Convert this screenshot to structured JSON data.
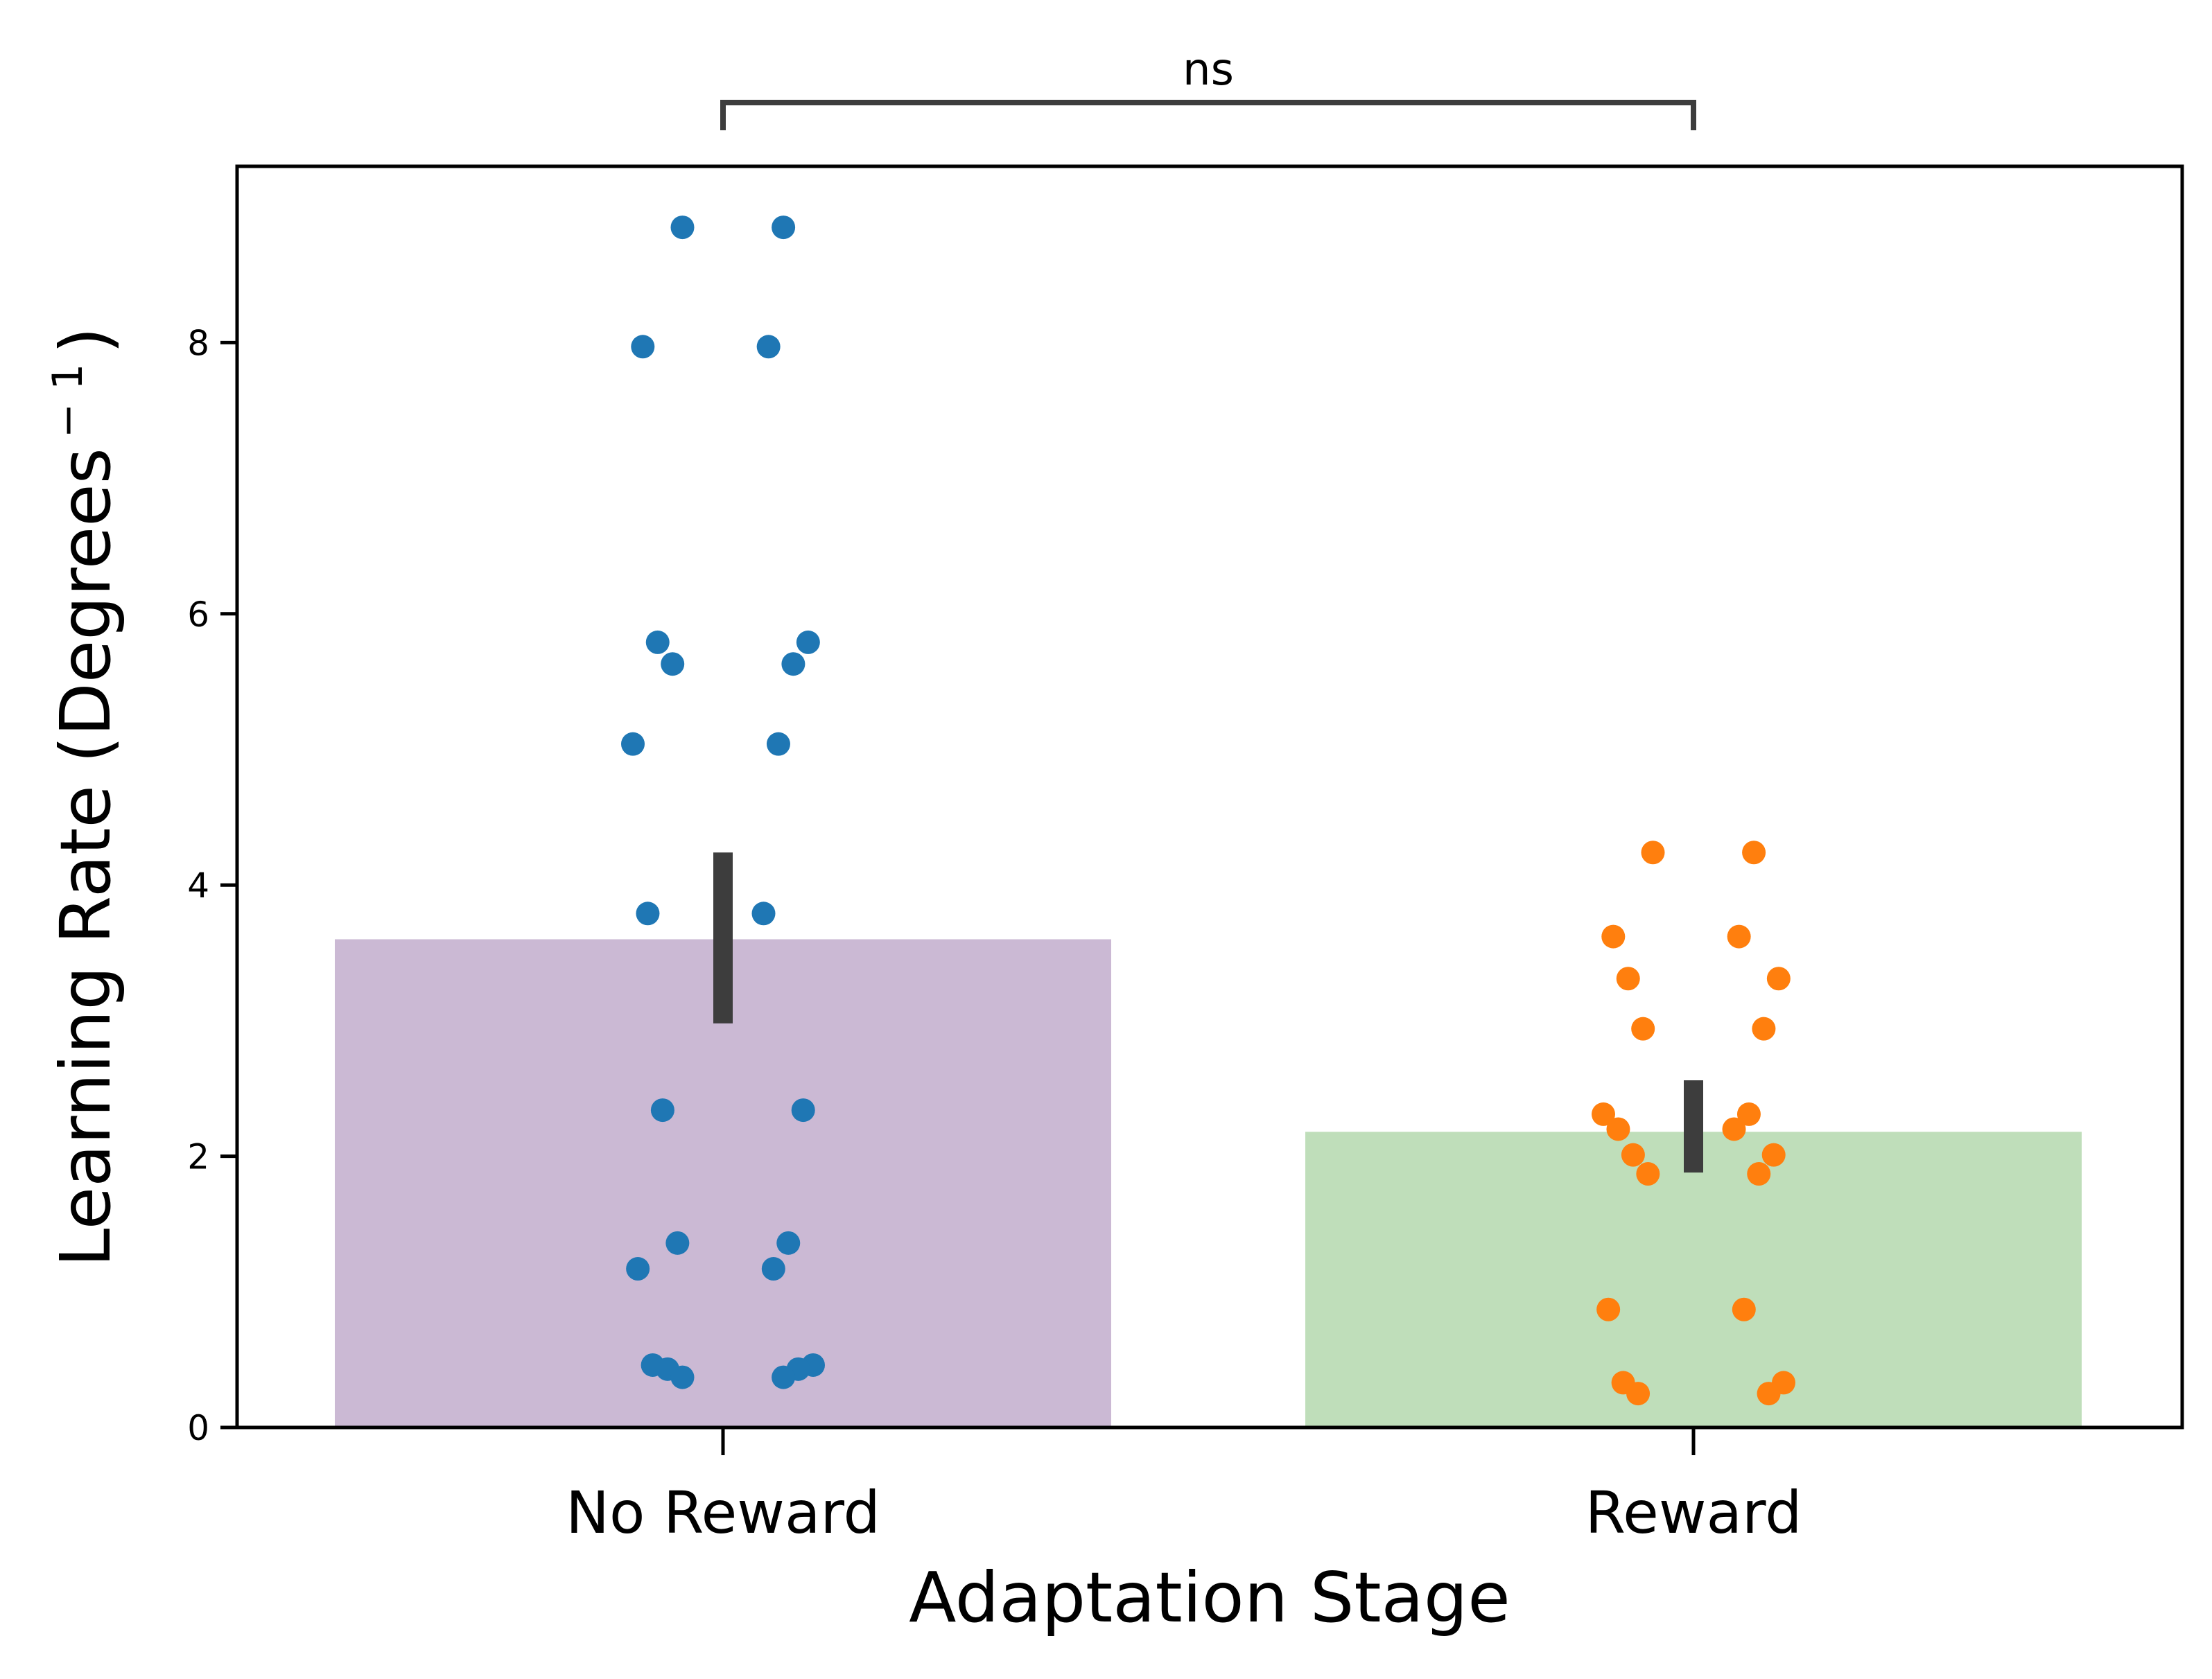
{
  "chart_data": {
    "type": "bar",
    "xlabel": "Adaptation Stage",
    "ylabel": "Learning Rate (Degrees",
    "ylabel_sup": "− 1",
    "ylabel_close": ")",
    "ylim": [
      0,
      9.3
    ],
    "yticks": [
      0,
      2,
      4,
      6,
      8
    ],
    "categories": [
      "No Reward",
      "Reward"
    ],
    "values": [
      3.6,
      2.18
    ],
    "error_bars": [
      [
        2.98,
        4.24
      ],
      [
        1.88,
        2.56
      ]
    ],
    "bar_colors": [
      "#cbb9d4",
      "#bfdeba"
    ],
    "errorbar_color": "#3d3d3d",
    "points": [
      {
        "category": "No Reward",
        "color": "#1f77b4",
        "values": [
          8.85,
          8.85,
          7.97,
          7.97,
          5.79,
          5.79,
          5.63,
          5.63,
          5.04,
          5.04,
          3.79,
          3.79,
          2.34,
          2.34,
          1.36,
          1.36,
          1.17,
          1.17,
          0.46,
          0.46,
          0.43,
          0.43,
          0.37,
          0.37
        ]
      },
      {
        "category": "Reward",
        "color": "#ff7f0e",
        "values": [
          4.24,
          4.24,
          3.62,
          3.62,
          3.31,
          3.31,
          2.94,
          2.94,
          2.31,
          2.31,
          2.2,
          2.2,
          2.01,
          2.01,
          1.87,
          1.87,
          0.87,
          0.87,
          0.33,
          0.33,
          0.25,
          0.25
        ]
      }
    ],
    "significance": {
      "label": "ns",
      "between": [
        "No Reward",
        "Reward"
      ]
    }
  }
}
